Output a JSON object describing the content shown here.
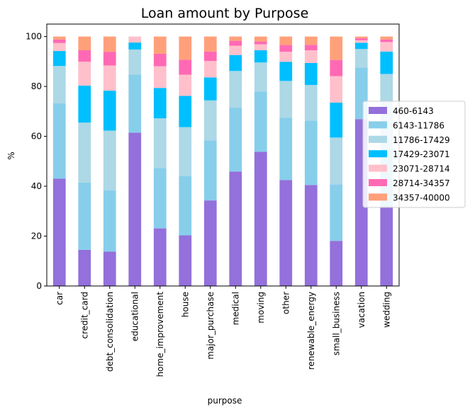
{
  "chart_data": {
    "type": "bar",
    "stacked": true,
    "title": "Loan amount by Purpose",
    "xlabel": "purpose",
    "ylabel": "%",
    "ylim": [
      0,
      105
    ],
    "yticks": [
      0,
      20,
      40,
      60,
      80,
      100
    ],
    "grid": false,
    "legend_position": "right",
    "categories": [
      "car",
      "credit_card",
      "debt_consolidation",
      "educational",
      "home_improvement",
      "house",
      "major_purchase",
      "medical",
      "moving",
      "other",
      "renewable_energy",
      "small_business",
      "vacation",
      "wedding"
    ],
    "series": [
      {
        "name": "460-6143",
        "color": "#9370DB",
        "values": [
          43.0,
          14.5,
          13.8,
          61.5,
          23.1,
          20.3,
          34.3,
          45.9,
          53.8,
          42.5,
          40.5,
          18.1,
          66.9,
          32.0
        ]
      },
      {
        "name": "6143-11786",
        "color": "#87CEEB",
        "values": [
          30.2,
          27.0,
          24.5,
          23.2,
          24.2,
          23.8,
          24.1,
          25.6,
          24.2,
          25.0,
          25.8,
          22.6,
          20.7,
          23.0
        ]
      },
      {
        "name": "11786-17429",
        "color": "#ADD8E6",
        "values": [
          15.0,
          24.0,
          24.0,
          10.1,
          19.9,
          19.6,
          16.0,
          14.7,
          11.6,
          14.7,
          14.3,
          18.8,
          7.4,
          30.0
        ]
      },
      {
        "name": "17429-23071",
        "color": "#00BFFF",
        "values": [
          6.0,
          14.8,
          16.0,
          2.8,
          12.2,
          12.5,
          9.2,
          6.4,
          4.9,
          7.7,
          8.8,
          14.0,
          2.5,
          9.0
        ]
      },
      {
        "name": "23071-28714",
        "color": "#FFC0CB",
        "values": [
          3.2,
          9.6,
          10.1,
          2.4,
          8.7,
          8.5,
          6.6,
          3.7,
          2.4,
          4.0,
          5.1,
          10.6,
          1.0,
          3.8
        ]
      },
      {
        "name": "28714-34357",
        "color": "#FF69B4",
        "values": [
          1.4,
          4.6,
          5.5,
          0.0,
          5.0,
          6.0,
          3.8,
          2.0,
          1.1,
          2.7,
          2.2,
          6.5,
          0.8,
          1.0
        ]
      },
      {
        "name": "34357-40000",
        "color": "#FFA07A",
        "values": [
          1.2,
          5.5,
          6.1,
          0.0,
          6.9,
          9.3,
          6.0,
          1.7,
          2.0,
          3.4,
          3.3,
          9.4,
          0.7,
          1.2
        ]
      }
    ]
  }
}
